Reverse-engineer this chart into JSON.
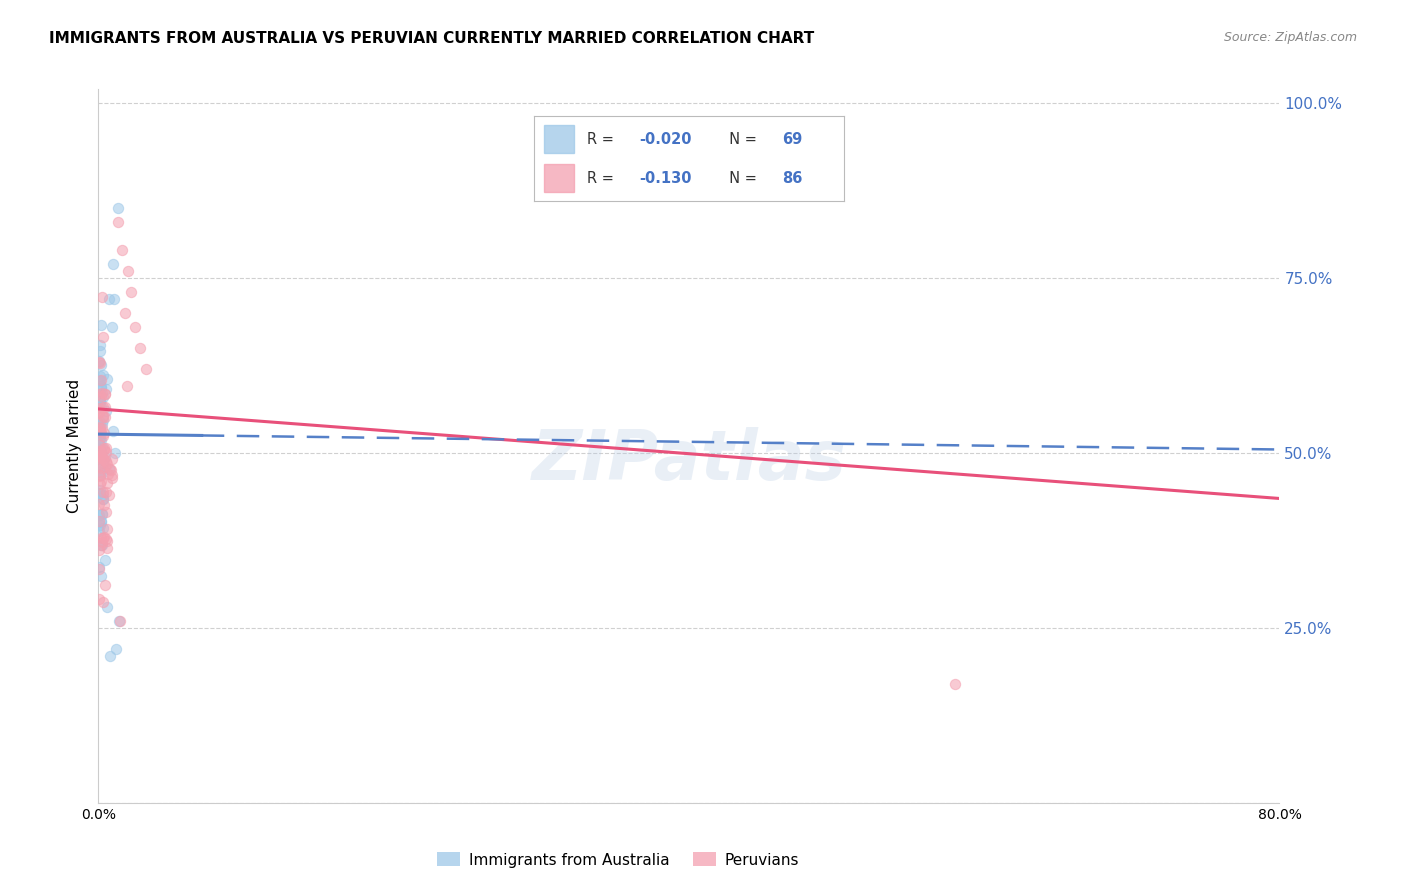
{
  "title": "IMMIGRANTS FROM AUSTRALIA VS PERUVIAN CURRENTLY MARRIED CORRELATION CHART",
  "source": "Source: ZipAtlas.com",
  "ylabel": "Currently Married",
  "blue_color": "#9ec8e8",
  "pink_color": "#f4a0b0",
  "blue_line_color": "#5580c8",
  "pink_line_color": "#e8507a",
  "right_axis_color": "#4472c4",
  "bg_color": "#ffffff",
  "grid_color": "#d0d0d0",
  "scatter_alpha": 0.55,
  "scatter_size": 55,
  "blue_line_y_start": 0.527,
  "blue_line_y_end": 0.505,
  "pink_line_y_start": 0.563,
  "pink_line_y_end": 0.435,
  "xlim": [
    0.0,
    0.8
  ],
  "ylim": [
    0.0,
    1.02
  ],
  "watermark": "ZIPatlas",
  "legend_r1": "R = ",
  "legend_v1": "-0.020",
  "legend_n1": "N = ",
  "legend_nv1": "69",
  "legend_r2": "R =  ",
  "legend_v2": "-0.130",
  "legend_n2": "N = ",
  "legend_nv2": "86"
}
